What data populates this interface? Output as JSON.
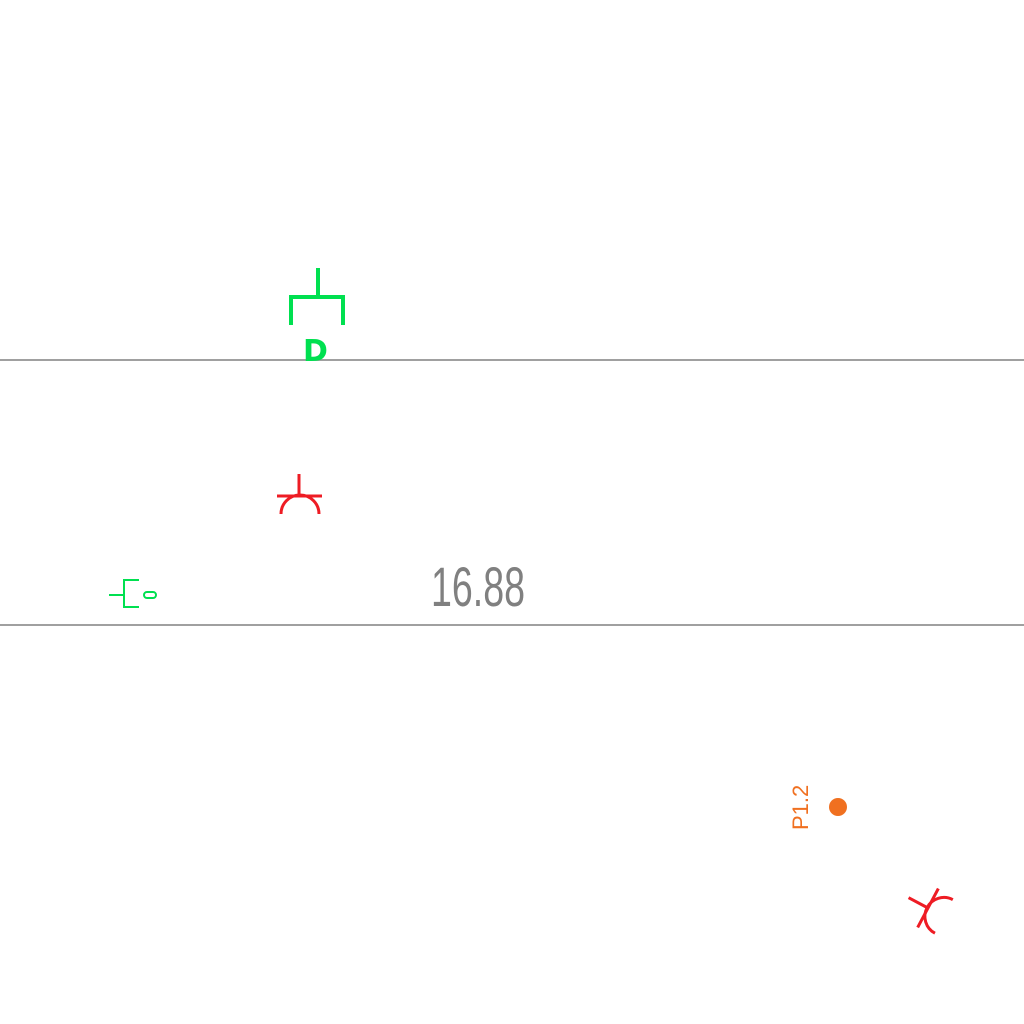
{
  "drawing": {
    "dimension": {
      "value": "16.88",
      "color": "#808080"
    },
    "lines_color": "#a0a0a0",
    "symbols": {
      "receptacle_d": {
        "letter": "D",
        "color": "#00e050",
        "icon": "receptacle-symbol-icon"
      },
      "wall_outlet": {
        "color": "#ee1c24",
        "icon": "outlet-arc-symbol-icon"
      },
      "side_switch": {
        "color": "#00e050",
        "icon": "switch-symbol-icon"
      },
      "rotated_outlet": {
        "color": "#ee1c24",
        "icon": "outlet-arc-symbol-icon"
      }
    },
    "point": {
      "label": "P1.2",
      "color": "#f07020",
      "icon": "survey-point-icon"
    }
  }
}
